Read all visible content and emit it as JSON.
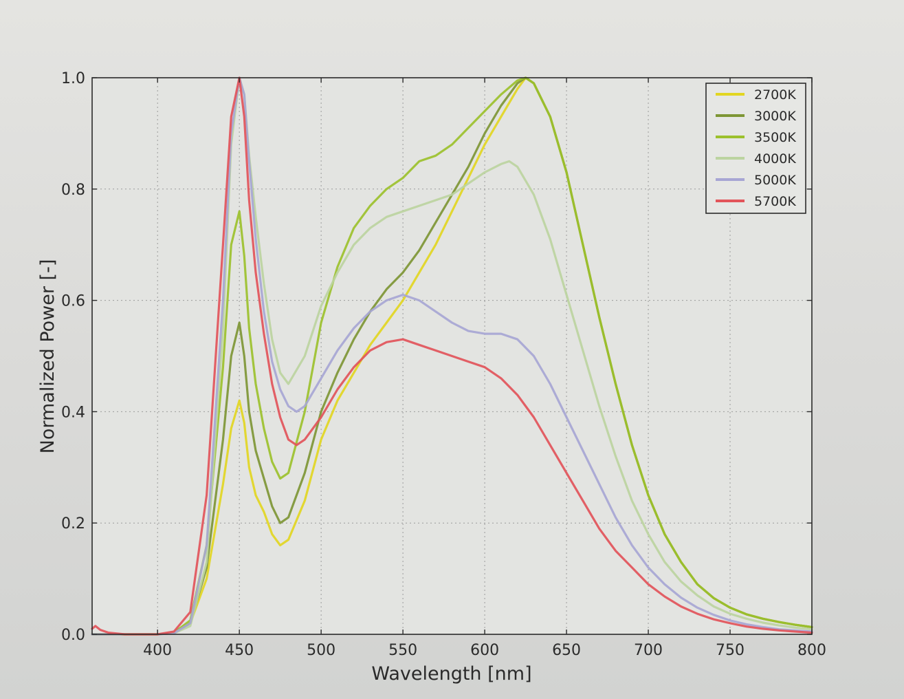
{
  "chart_data": {
    "type": "line",
    "title": "",
    "xlabel": "Wavelength [nm]",
    "ylabel": "Normalized Power [-]",
    "xlim": [
      360,
      800
    ],
    "ylim": [
      0.0,
      1.0
    ],
    "xticks": [
      400,
      450,
      500,
      550,
      600,
      650,
      700,
      750,
      800
    ],
    "xtick_labels": [
      "400",
      "450",
      "500",
      "550",
      "600",
      "650",
      "700",
      "750",
      "800"
    ],
    "yticks": [
      0.0,
      0.2,
      0.4,
      0.6,
      0.8,
      1.0
    ],
    "ytick_labels": [
      "0.0",
      "0.2",
      "0.4",
      "0.6",
      "0.8",
      "1.0"
    ],
    "grid": true,
    "legend_position": "top-right",
    "series": [
      {
        "name": "2700K",
        "color": "#e2d622",
        "x": [
          360,
          380,
          400,
          410,
          420,
          430,
          440,
          445,
          450,
          453,
          456,
          460,
          465,
          470,
          475,
          480,
          490,
          500,
          510,
          520,
          530,
          540,
          550,
          560,
          570,
          580,
          590,
          600,
          610,
          620,
          625,
          630,
          640,
          650,
          660,
          670,
          680,
          690,
          700,
          710,
          720,
          730,
          740,
          750,
          760,
          770,
          780,
          790,
          800
        ],
        "y": [
          0.0,
          0.0,
          0.0,
          0.003,
          0.02,
          0.1,
          0.27,
          0.37,
          0.42,
          0.38,
          0.3,
          0.25,
          0.22,
          0.18,
          0.16,
          0.17,
          0.24,
          0.35,
          0.42,
          0.47,
          0.52,
          0.56,
          0.6,
          0.65,
          0.7,
          0.76,
          0.82,
          0.88,
          0.93,
          0.98,
          1.0,
          0.99,
          0.93,
          0.83,
          0.7,
          0.57,
          0.45,
          0.34,
          0.25,
          0.18,
          0.13,
          0.09,
          0.065,
          0.048,
          0.036,
          0.028,
          0.022,
          0.017,
          0.013
        ]
      },
      {
        "name": "3000K",
        "color": "#7e9635",
        "x": [
          360,
          380,
          400,
          410,
          420,
          430,
          440,
          445,
          450,
          453,
          456,
          460,
          465,
          470,
          475,
          480,
          490,
          500,
          510,
          520,
          530,
          540,
          550,
          560,
          570,
          580,
          590,
          600,
          610,
          620,
          625,
          630,
          640,
          650,
          660,
          670,
          680,
          690,
          700,
          710,
          720,
          730,
          740,
          750,
          760,
          770,
          780,
          790,
          800
        ],
        "y": [
          0.0,
          0.0,
          0.0,
          0.003,
          0.02,
          0.12,
          0.35,
          0.5,
          0.56,
          0.5,
          0.4,
          0.33,
          0.28,
          0.23,
          0.2,
          0.21,
          0.29,
          0.4,
          0.47,
          0.53,
          0.58,
          0.62,
          0.65,
          0.69,
          0.74,
          0.79,
          0.84,
          0.9,
          0.95,
          0.99,
          1.0,
          0.99,
          0.93,
          0.83,
          0.7,
          0.57,
          0.45,
          0.34,
          0.25,
          0.18,
          0.13,
          0.09,
          0.065,
          0.048,
          0.036,
          0.028,
          0.022,
          0.017,
          0.013
        ]
      },
      {
        "name": "3500K",
        "color": "#9cc12c",
        "x": [
          360,
          380,
          400,
          410,
          420,
          430,
          440,
          445,
          450,
          453,
          456,
          460,
          465,
          470,
          475,
          480,
          490,
          500,
          510,
          520,
          530,
          540,
          550,
          560,
          570,
          580,
          590,
          600,
          610,
          620,
          625,
          630,
          640,
          650,
          660,
          670,
          680,
          690,
          700,
          710,
          720,
          730,
          740,
          750,
          760,
          770,
          780,
          790,
          800
        ],
        "y": [
          0.0,
          0.0,
          0.0,
          0.003,
          0.025,
          0.16,
          0.48,
          0.7,
          0.76,
          0.68,
          0.55,
          0.45,
          0.37,
          0.31,
          0.28,
          0.29,
          0.4,
          0.56,
          0.66,
          0.73,
          0.77,
          0.8,
          0.82,
          0.85,
          0.86,
          0.88,
          0.91,
          0.94,
          0.97,
          0.995,
          1.0,
          0.99,
          0.93,
          0.83,
          0.7,
          0.57,
          0.45,
          0.34,
          0.25,
          0.18,
          0.13,
          0.09,
          0.065,
          0.048,
          0.036,
          0.028,
          0.022,
          0.017,
          0.013
        ]
      },
      {
        "name": "4000K",
        "color": "#bcd4a0",
        "x": [
          360,
          380,
          400,
          410,
          420,
          430,
          440,
          445,
          450,
          453,
          456,
          460,
          465,
          470,
          475,
          480,
          490,
          500,
          510,
          520,
          530,
          540,
          550,
          560,
          570,
          580,
          590,
          600,
          610,
          615,
          620,
          630,
          640,
          650,
          660,
          670,
          680,
          690,
          700,
          710,
          720,
          730,
          740,
          750,
          760,
          770,
          780,
          790,
          800
        ],
        "y": [
          0.0,
          0.0,
          0.0,
          0.002,
          0.015,
          0.13,
          0.55,
          0.88,
          1.0,
          0.97,
          0.86,
          0.75,
          0.63,
          0.53,
          0.47,
          0.45,
          0.5,
          0.59,
          0.65,
          0.7,
          0.73,
          0.75,
          0.76,
          0.77,
          0.78,
          0.79,
          0.81,
          0.83,
          0.845,
          0.85,
          0.84,
          0.79,
          0.71,
          0.61,
          0.51,
          0.41,
          0.32,
          0.24,
          0.18,
          0.13,
          0.095,
          0.07,
          0.05,
          0.037,
          0.028,
          0.021,
          0.016,
          0.012,
          0.009
        ]
      },
      {
        "name": "5000K",
        "color": "#a7a6d4",
        "x": [
          360,
          380,
          400,
          410,
          420,
          430,
          440,
          445,
          450,
          453,
          456,
          460,
          465,
          470,
          475,
          480,
          485,
          490,
          500,
          510,
          520,
          530,
          540,
          550,
          560,
          570,
          580,
          590,
          600,
          610,
          620,
          630,
          640,
          650,
          660,
          670,
          680,
          690,
          700,
          710,
          720,
          730,
          740,
          750,
          760,
          770,
          780,
          790,
          800
        ],
        "y": [
          0.0,
          0.0,
          0.0,
          0.002,
          0.02,
          0.16,
          0.6,
          0.9,
          1.0,
          0.97,
          0.85,
          0.71,
          0.58,
          0.49,
          0.44,
          0.41,
          0.4,
          0.41,
          0.46,
          0.51,
          0.55,
          0.58,
          0.6,
          0.61,
          0.6,
          0.58,
          0.56,
          0.545,
          0.54,
          0.54,
          0.53,
          0.5,
          0.45,
          0.39,
          0.33,
          0.27,
          0.21,
          0.16,
          0.12,
          0.09,
          0.066,
          0.048,
          0.035,
          0.025,
          0.018,
          0.013,
          0.009,
          0.007,
          0.005
        ]
      },
      {
        "name": "5700K",
        "color": "#e2545a",
        "x": [
          360,
          362,
          365,
          370,
          380,
          400,
          410,
          420,
          430,
          440,
          445,
          450,
          453,
          456,
          460,
          465,
          470,
          475,
          480,
          485,
          490,
          500,
          510,
          520,
          530,
          540,
          550,
          560,
          570,
          580,
          590,
          600,
          610,
          620,
          630,
          640,
          650,
          660,
          670,
          680,
          690,
          700,
          710,
          720,
          730,
          740,
          750,
          760,
          770,
          780,
          790,
          800
        ],
        "y": [
          0.01,
          0.015,
          0.008,
          0.003,
          0.0,
          0.0,
          0.005,
          0.04,
          0.25,
          0.7,
          0.93,
          1.0,
          0.93,
          0.78,
          0.65,
          0.54,
          0.45,
          0.39,
          0.35,
          0.34,
          0.35,
          0.39,
          0.44,
          0.48,
          0.51,
          0.525,
          0.53,
          0.52,
          0.51,
          0.5,
          0.49,
          0.48,
          0.46,
          0.43,
          0.39,
          0.34,
          0.29,
          0.24,
          0.19,
          0.15,
          0.12,
          0.09,
          0.068,
          0.05,
          0.037,
          0.027,
          0.02,
          0.014,
          0.01,
          0.007,
          0.005,
          0.003
        ]
      }
    ]
  }
}
